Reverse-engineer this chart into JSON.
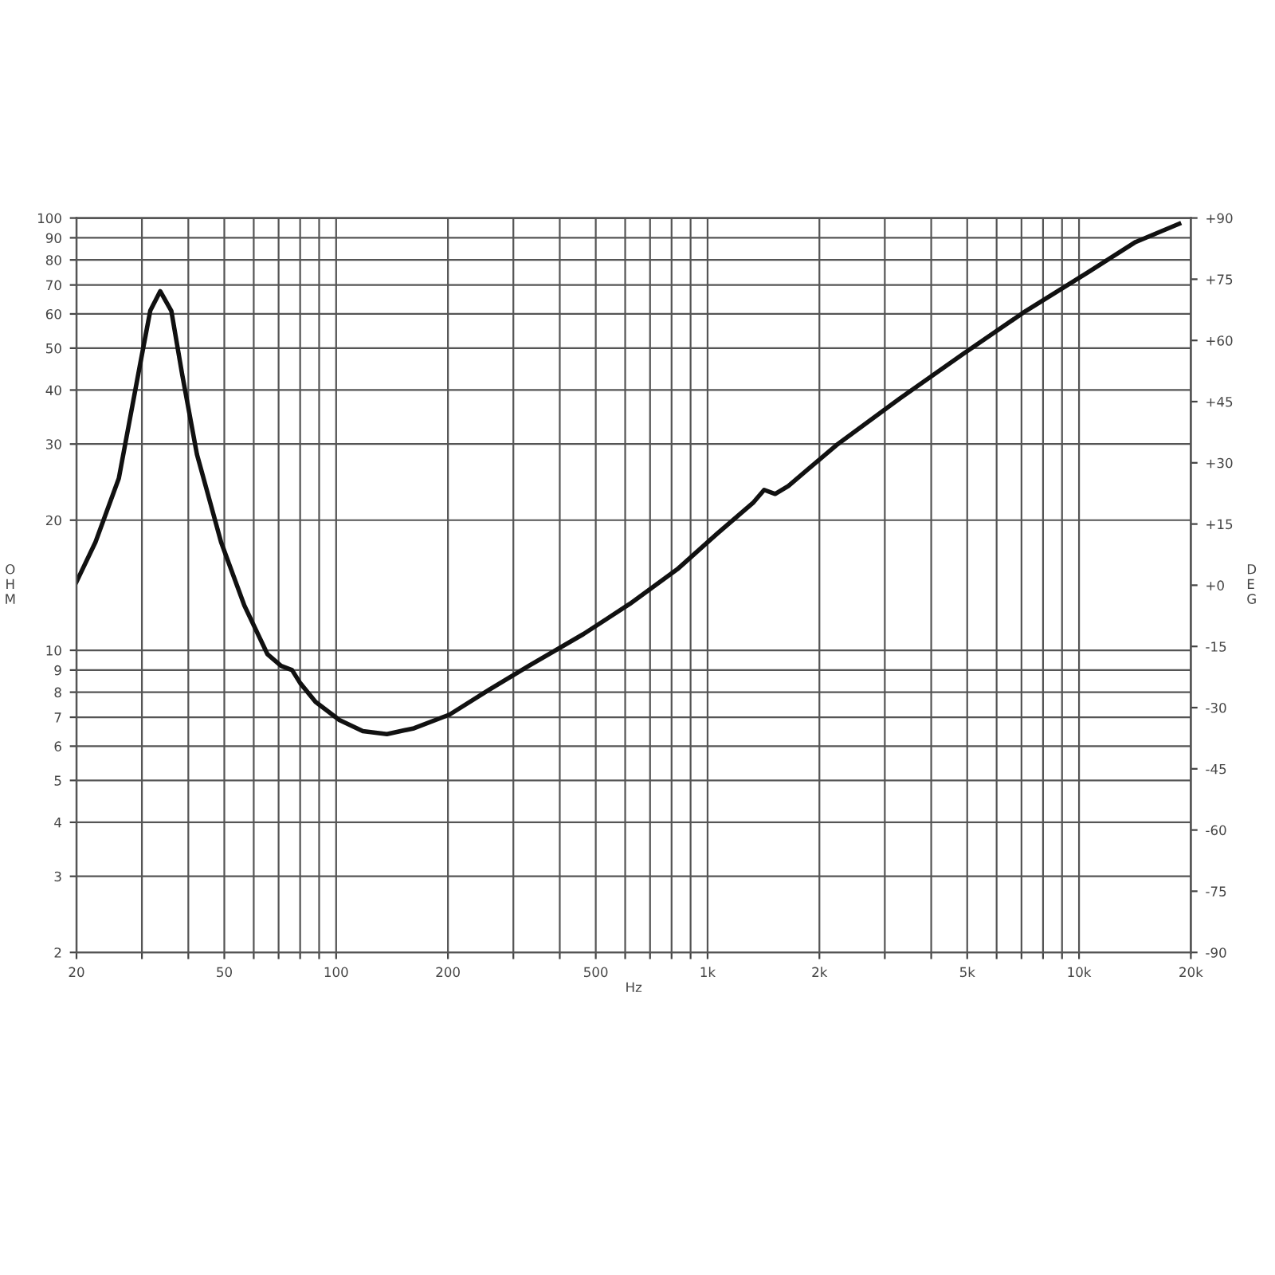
{
  "chart_data": {
    "type": "line",
    "xlabel": "Hz",
    "ylabel": "O\nH\nM",
    "y2label": "D\nE\nG",
    "log": "xy",
    "x": [
      20,
      22.5,
      26,
      29.6,
      31.6,
      33.6,
      36,
      38.5,
      42.2,
      49,
      56.6,
      65.3,
      71.1,
      76.1,
      80,
      88,
      102,
      118,
      137,
      162,
      202,
      258,
      330,
      463,
      617,
      829,
      1060,
      1330,
      1420,
      1520,
      1650,
      2220,
      3300,
      4880,
      7200,
      10600,
      14200,
      18600
    ],
    "series": [
      {
        "color": "#111111",
        "values": [
          14.4,
          17.8,
          25,
          45.4,
          61.1,
          67.7,
          61,
          43.5,
          28.4,
          17.8,
          12.7,
          9.8,
          9.2,
          9.0,
          8.4,
          7.6,
          6.9,
          6.5,
          6.4,
          6.6,
          7.1,
          8.1,
          9.2,
          10.9,
          12.8,
          15.4,
          18.6,
          22.0,
          23.5,
          23.0,
          24,
          29.8,
          38.3,
          48.5,
          61,
          75,
          88,
          97
        ]
      }
    ],
    "xlim": [
      20,
      20000
    ],
    "ylim": [
      2,
      100
    ],
    "y2lim": [
      -90,
      90
    ],
    "xticks": [
      20,
      {
        "value": 30,
        "label": null
      },
      {
        "value": 40,
        "label": null
      },
      50,
      {
        "value": 60,
        "label": null
      },
      {
        "value": 70,
        "label": null
      },
      {
        "value": 80,
        "label": null
      },
      {
        "value": 90,
        "label": null
      },
      100,
      200,
      {
        "value": 300,
        "label": null
      },
      {
        "value": 400,
        "label": null
      },
      500,
      {
        "value": 600,
        "label": null
      },
      {
        "value": 700,
        "label": null
      },
      {
        "value": 800,
        "label": null
      },
      {
        "value": 900,
        "label": null
      },
      {
        "value": 1000,
        "label": "1k"
      },
      {
        "value": 2000,
        "label": "2k"
      },
      {
        "value": 3000,
        "label": null
      },
      {
        "value": 4000,
        "label": null
      },
      {
        "value": 5000,
        "label": "5k"
      },
      {
        "value": 6000,
        "label": null
      },
      {
        "value": 7000,
        "label": null
      },
      {
        "value": 8000,
        "label": null
      },
      {
        "value": 9000,
        "label": null
      },
      {
        "value": 10000,
        "label": "10k"
      },
      {
        "value": 20000,
        "label": "20k"
      }
    ],
    "yticks": [
      2,
      3,
      4,
      5,
      6,
      7,
      8,
      9,
      10,
      20,
      30,
      40,
      50,
      60,
      70,
      80,
      90,
      100
    ],
    "y2ticks": [
      {
        "value": 90,
        "label": "+90"
      },
      {
        "value": 75,
        "label": "+75"
      },
      {
        "value": 60,
        "label": "+60"
      },
      {
        "value": 45,
        "label": "+45"
      },
      {
        "value": 30,
        "label": "+30"
      },
      {
        "value": 15,
        "label": "+15"
      },
      {
        "value": 0,
        "label": "+0"
      },
      -15,
      -30,
      -45,
      -60,
      -75,
      -90
    ],
    "grid": true,
    "marker": "none",
    "line_style": "solid"
  }
}
